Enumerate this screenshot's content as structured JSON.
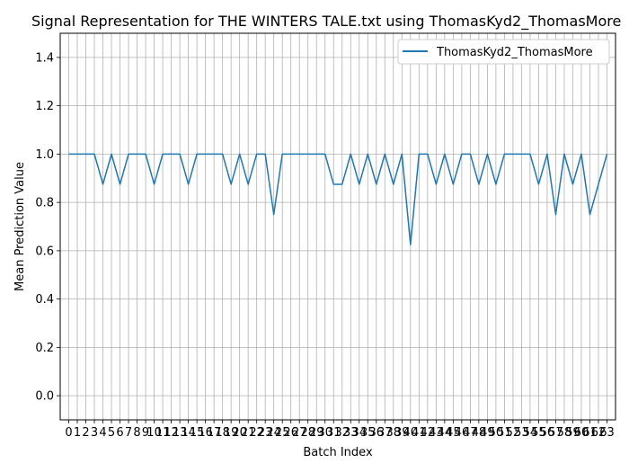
{
  "chart_data": {
    "type": "line",
    "title": "Signal Representation for THE WINTERS TALE.txt using ThomasKyd2_ThomasMore",
    "xlabel": "Batch Index",
    "ylabel": "Mean Prediction Value",
    "xlim": [
      -1,
      64
    ],
    "ylim": [
      -0.1,
      1.5
    ],
    "yticks": [
      "0.0",
      "0.2",
      "0.4",
      "0.6",
      "0.8",
      "1.0",
      "1.2",
      "1.4"
    ],
    "ytick_values": [
      0.0,
      0.2,
      0.4,
      0.6,
      0.8,
      1.0,
      1.2,
      1.4
    ],
    "grid": true,
    "legend": "top-right",
    "series": [
      {
        "name": "ThomasKyd2_ThomasMore",
        "color": "#1f77b4",
        "x": [
          0,
          1,
          2,
          3,
          4,
          5,
          6,
          7,
          8,
          9,
          10,
          11,
          12,
          13,
          14,
          15,
          16,
          17,
          18,
          19,
          20,
          21,
          22,
          23,
          24,
          25,
          26,
          27,
          28,
          29,
          30,
          31,
          32,
          33,
          34,
          35,
          36,
          37,
          38,
          39,
          40,
          41,
          42,
          43,
          44,
          45,
          46,
          47,
          48,
          49,
          50,
          51,
          52,
          53,
          54,
          55,
          56,
          57,
          58,
          59,
          60,
          61,
          62,
          63
        ],
        "values": [
          1.0,
          1.0,
          1.0,
          1.0,
          0.875,
          1.0,
          0.875,
          1.0,
          1.0,
          1.0,
          0.875,
          1.0,
          1.0,
          1.0,
          0.875,
          1.0,
          1.0,
          1.0,
          1.0,
          0.875,
          1.0,
          0.875,
          1.0,
          1.0,
          0.75,
          1.0,
          1.0,
          1.0,
          1.0,
          1.0,
          1.0,
          0.875,
          0.875,
          1.0,
          0.875,
          1.0,
          0.875,
          1.0,
          0.875,
          1.0,
          0.625,
          1.0,
          1.0,
          0.875,
          1.0,
          0.875,
          1.0,
          1.0,
          0.875,
          1.0,
          0.875,
          1.0,
          1.0,
          1.0,
          1.0,
          0.875,
          1.0,
          0.75,
          1.0,
          0.875,
          1.0,
          0.75,
          0.875,
          1.0
        ]
      }
    ]
  }
}
